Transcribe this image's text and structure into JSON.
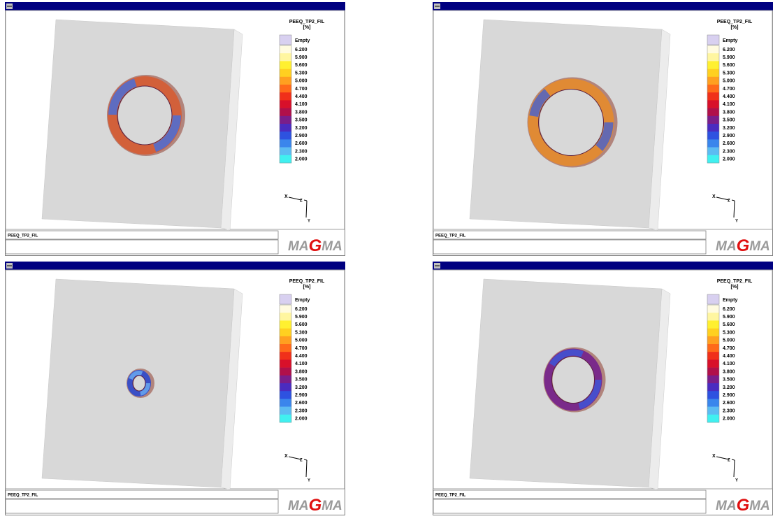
{
  "panels": [
    {
      "legend": {
        "title": "PEEQ_TP2_FIL",
        "unit": "[%]",
        "empty": "Empty",
        "values": [
          "6.200",
          "5.900",
          "5.600",
          "5.300",
          "5.000",
          "4.700",
          "4.400",
          "4.100",
          "3.800",
          "3.500",
          "3.200",
          "2.900",
          "2.600",
          "2.300",
          "2.000"
        ]
      },
      "axes": {
        "x": "X",
        "z": "Z",
        "y": "Y"
      },
      "status": "PEEQ_TP2_FIL",
      "logo": {
        "left": "MA",
        "mid": "G",
        "right": "MA"
      }
    },
    {
      "legend": {
        "title": "PEEQ_TP2_FIL",
        "unit": "[%]",
        "empty": "Empty",
        "values": [
          "6.200",
          "5.900",
          "5.600",
          "5.300",
          "5.000",
          "4.700",
          "4.400",
          "4.100",
          "3.800",
          "3.500",
          "3.200",
          "2.900",
          "2.600",
          "2.300",
          "2.000"
        ]
      },
      "axes": {
        "x": "X",
        "z": "Z",
        "y": "Y"
      },
      "status": "PEEQ_TP2_FIL",
      "logo": {
        "left": "MA",
        "mid": "G",
        "right": "MA"
      }
    },
    {
      "legend": {
        "title": "PEEQ_TP2_FIL",
        "unit": "[%]",
        "empty": "Empty",
        "values": [
          "6.200",
          "5.900",
          "5.600",
          "5.300",
          "5.000",
          "4.700",
          "4.400",
          "4.100",
          "3.800",
          "3.500",
          "3.200",
          "2.900",
          "2.600",
          "2.300",
          "2.000"
        ]
      },
      "axes": {
        "x": "X",
        "z": "Z",
        "y": "Y"
      },
      "status": "PEEQ_TP2_FIL",
      "logo": {
        "left": "MA",
        "mid": "G",
        "right": "MA"
      }
    },
    {
      "legend": {
        "title": "PEEQ_TP2_FIL",
        "unit": "[%]",
        "empty": "Empty",
        "values": [
          "6.200",
          "5.900",
          "5.600",
          "5.300",
          "5.000",
          "4.700",
          "4.400",
          "4.100",
          "3.800",
          "3.500",
          "3.200",
          "2.900",
          "2.600",
          "2.300",
          "2.000"
        ]
      },
      "axes": {
        "x": "X",
        "z": "Z",
        "y": "Y"
      },
      "status": "PEEQ_TP2_FIL",
      "logo": {
        "left": "MA",
        "mid": "G",
        "right": "MA"
      }
    }
  ]
}
